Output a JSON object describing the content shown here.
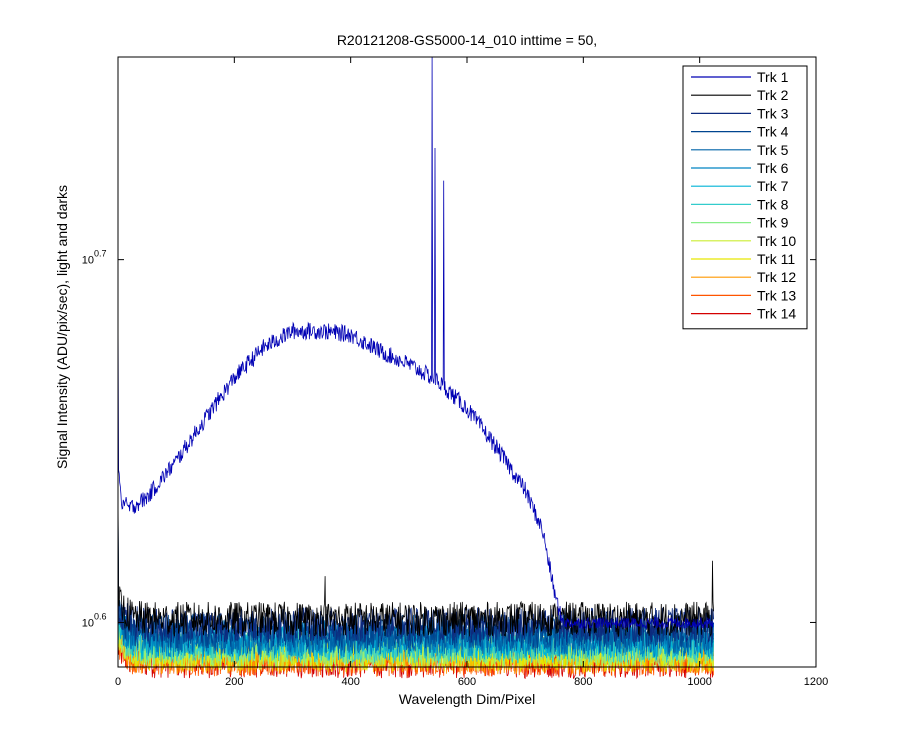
{
  "chart_data": {
    "type": "line",
    "title": "R20121208-GS5000-14_010 inttime = 50,",
    "xlabel": "Wavelength Dim/Pixel",
    "ylabel": "Signal Intensity (ADU/pix/sec), light and darks",
    "xlim": [
      0,
      1200
    ],
    "x_ticks": [
      "0",
      "200",
      "400",
      "600",
      "800",
      "1000",
      "1200"
    ],
    "y_scale": "log",
    "ylim": [
      3.87,
      5.7
    ],
    "y_ticks": [
      {
        "value": 3.981,
        "base": "10",
        "exp": "0.6"
      },
      {
        "value": 5.012,
        "base": "10",
        "exp": "0.7"
      }
    ],
    "grid": false,
    "legend_position": "top-right",
    "series": [
      {
        "name": "Trk 1",
        "color": "#0000b4",
        "points": [
          [
            0,
            4.88
          ],
          [
            1,
            4.4
          ],
          [
            5,
            4.3
          ],
          [
            20,
            4.28
          ],
          [
            50,
            4.31
          ],
          [
            100,
            4.41
          ],
          [
            150,
            4.53
          ],
          [
            200,
            4.65
          ],
          [
            250,
            4.74
          ],
          [
            300,
            4.79
          ],
          [
            350,
            4.79
          ],
          [
            400,
            4.78
          ],
          [
            450,
            4.73
          ],
          [
            500,
            4.69
          ],
          [
            550,
            4.64
          ],
          [
            600,
            4.56
          ],
          [
            650,
            4.45
          ],
          [
            700,
            4.33
          ],
          [
            730,
            4.22
          ],
          [
            750,
            4.06
          ],
          [
            762,
            3.99
          ],
          [
            770,
            3.98
          ],
          [
            850,
            3.98
          ],
          [
            950,
            3.98
          ],
          [
            1024,
            3.98
          ]
        ],
        "spikes": [
          [
            540,
            5.7
          ],
          [
            545,
            5.38
          ],
          [
            560,
            5.27
          ]
        ]
      },
      {
        "name": "Trk 2",
        "color": "#000000",
        "level": 3.99,
        "start": 4.04,
        "spikes": [
          [
            356,
            4.1
          ],
          [
            998,
            4.02
          ],
          [
            1022,
            4.14
          ]
        ]
      },
      {
        "name": "Trk 3",
        "color": "#0d2a7e",
        "level": 3.975,
        "start": 4.03
      },
      {
        "name": "Trk 4",
        "color": "#00458f",
        "level": 3.96,
        "start": 4.02
      },
      {
        "name": "Trk 5",
        "color": "#0064a8",
        "level": 3.945,
        "start": 4.01
      },
      {
        "name": "Trk 6",
        "color": "#0084c2",
        "level": 3.938,
        "start": 4.0
      },
      {
        "name": "Trk 7",
        "color": "#00b4d6",
        "level": 3.93,
        "start": 3.99
      },
      {
        "name": "Trk 8",
        "color": "#33cccc",
        "level": 3.922,
        "start": 3.98
      },
      {
        "name": "Trk 9",
        "color": "#88ee88",
        "level": 3.915,
        "start": 3.97
      },
      {
        "name": "Trk 10",
        "color": "#ccee33",
        "level": 3.908,
        "start": 3.96
      },
      {
        "name": "Trk 11",
        "color": "#e6e600",
        "level": 3.9,
        "start": 3.95
      },
      {
        "name": "Trk 12",
        "color": "#ff9900",
        "level": 3.895,
        "start": 3.94
      },
      {
        "name": "Trk 13",
        "color": "#ff5500",
        "level": 3.89,
        "start": 3.93
      },
      {
        "name": "Trk 14",
        "color": "#d40000",
        "level": 3.885,
        "start": 3.92
      }
    ]
  }
}
